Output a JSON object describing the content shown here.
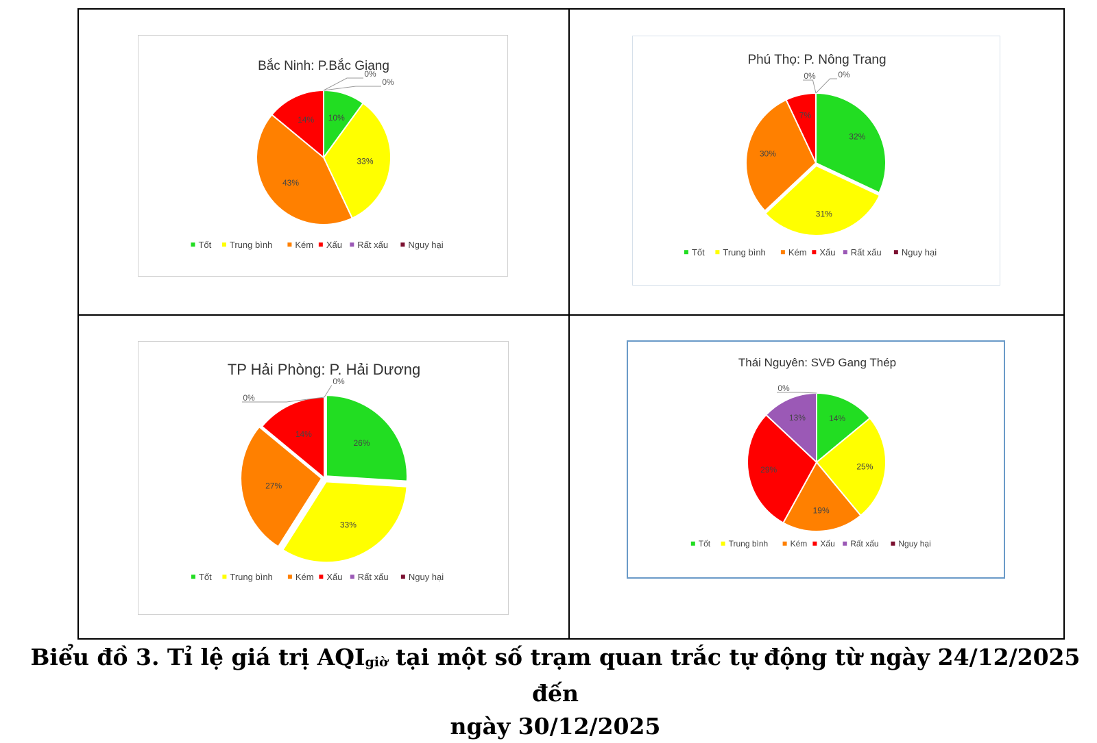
{
  "legend_labels": [
    "Tốt",
    "Trung bình",
    "Kém",
    "Xấu",
    "Rất xấu",
    "Nguy hại"
  ],
  "category_colors": [
    "#22dd22",
    "#ffff00",
    "#ff8000",
    "#ff0000",
    "#9b59b6",
    "#7b1030"
  ],
  "chart_data": [
    {
      "type": "pie",
      "title": "Bắc Ninh: P.Bắc Giang",
      "categories": [
        "Tốt",
        "Trung bình",
        "Kém",
        "Xấu",
        "Rất xấu",
        "Nguy hại"
      ],
      "values": [
        10,
        33,
        43,
        14,
        0,
        0
      ],
      "labels": [
        "10%",
        "33%",
        "43%",
        "14%",
        "0%",
        "0%"
      ],
      "legend": "bottom"
    },
    {
      "type": "pie",
      "title": "Phú Thọ: P. Nông Trang",
      "categories": [
        "Tốt",
        "Trung bình",
        "Kém",
        "Xấu",
        "Rất xấu",
        "Nguy hại"
      ],
      "values": [
        32,
        31,
        30,
        7,
        0,
        0
      ],
      "labels": [
        "32%",
        "31%",
        "30%",
        "7%",
        "0%",
        "0%"
      ],
      "legend": "bottom"
    },
    {
      "type": "pie",
      "title": "TP Hải Phòng: P. Hải Dương",
      "categories": [
        "Tốt",
        "Trung bình",
        "Kém",
        "Xấu",
        "Rất xấu",
        "Nguy hại"
      ],
      "values": [
        26,
        33,
        27,
        14,
        0,
        0
      ],
      "labels": [
        "26%",
        "33%",
        "27%",
        "14%",
        "0%",
        "0%"
      ],
      "legend": "bottom"
    },
    {
      "type": "pie",
      "title": "Thái Nguyên: SVĐ Gang Thép",
      "categories": [
        "Tốt",
        "Trung bình",
        "Kém",
        "Xấu",
        "Rất xấu",
        "Nguy hại"
      ],
      "values": [
        14,
        25,
        19,
        29,
        13,
        0
      ],
      "labels": [
        "14%",
        "25%",
        "19%",
        "29%",
        "13%",
        "0%"
      ],
      "legend": "bottom"
    }
  ],
  "caption": {
    "line1_prefix": "Biểu đồ 3.  Tỉ lệ giá trị AQI",
    "line1_sub": "giờ",
    "line1_suffix": " tại một số trạm quan trắc tự động từ ngày 24/12/2025 đến",
    "line2": "ngày 30/12/2025"
  }
}
